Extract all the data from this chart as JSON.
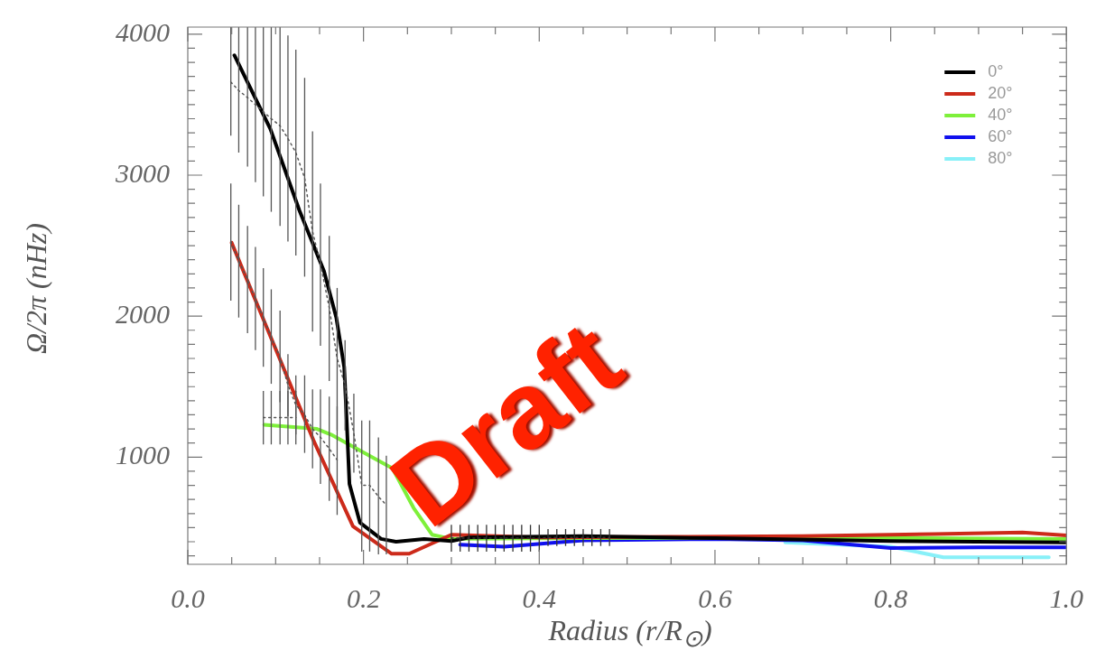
{
  "chart_data": {
    "type": "line",
    "xlabel": "Radius (r/R$_{⊙}$)",
    "ylabel": "Ω/2π (nHz)",
    "annotations": [
      "Draft"
    ],
    "legend": "top right",
    "marker": "none",
    "xlim": [
      0,
      1
    ],
    "ylim": [
      240,
      4050
    ],
    "xticks": [
      {
        "value": 0,
        "label": "0.0"
      },
      {
        "value": 0.05,
        "label": null
      },
      {
        "value": 0.1,
        "label": null
      },
      {
        "value": 0.15,
        "label": null
      },
      {
        "value": 0.2,
        "label": "0.2"
      },
      {
        "value": 0.25,
        "label": null
      },
      {
        "value": 0.3,
        "label": null
      },
      {
        "value": 0.35,
        "label": null
      },
      {
        "value": 0.4,
        "label": "0.4"
      },
      {
        "value": 0.45,
        "label": null
      },
      {
        "value": 0.5,
        "label": null
      },
      {
        "value": 0.55,
        "label": null
      },
      {
        "value": 0.6,
        "label": "0.6"
      },
      {
        "value": 0.65,
        "label": null
      },
      {
        "value": 0.7,
        "label": null
      },
      {
        "value": 0.75,
        "label": null
      },
      {
        "value": 0.8,
        "label": "0.8"
      },
      {
        "value": 0.85,
        "label": null
      },
      {
        "value": 0.9,
        "label": null
      },
      {
        "value": 0.95,
        "label": null
      },
      {
        "value": 1,
        "label": "1.0"
      }
    ],
    "yticks": [
      {
        "value": 300,
        "label": null
      },
      {
        "value": 400,
        "label": null
      },
      {
        "value": 500,
        "label": null
      },
      {
        "value": 600,
        "label": null
      },
      {
        "value": 700,
        "label": null
      },
      {
        "value": 800,
        "label": null
      },
      {
        "value": 900,
        "label": null
      },
      1000,
      {
        "value": 1100,
        "label": null
      },
      {
        "value": 1200,
        "label": null
      },
      {
        "value": 1300,
        "label": null
      },
      {
        "value": 1400,
        "label": null
      },
      {
        "value": 1500,
        "label": null
      },
      {
        "value": 1600,
        "label": null
      },
      {
        "value": 1700,
        "label": null
      },
      {
        "value": 1800,
        "label": null
      },
      {
        "value": 1900,
        "label": null
      },
      2000,
      {
        "value": 2100,
        "label": null
      },
      {
        "value": 2200,
        "label": null
      },
      {
        "value": 2300,
        "label": null
      },
      {
        "value": 2400,
        "label": null
      },
      {
        "value": 2500,
        "label": null
      },
      {
        "value": 2600,
        "label": null
      },
      {
        "value": 2700,
        "label": null
      },
      {
        "value": 2800,
        "label": null
      },
      {
        "value": 2900,
        "label": null
      },
      3000,
      {
        "value": 3100,
        "label": null
      },
      {
        "value": 3200,
        "label": null
      },
      {
        "value": 3300,
        "label": null
      },
      {
        "value": 3400,
        "label": null
      },
      {
        "value": 3500,
        "label": null
      },
      {
        "value": 3600,
        "label": null
      },
      {
        "value": 3700,
        "label": null
      },
      {
        "value": 3800,
        "label": null
      },
      {
        "value": 3900,
        "label": null
      },
      4000
    ],
    "series": [
      {
        "type": "line",
        "line_style": "dotted",
        "color": "#555555",
        "x": [
          0.049,
          0.058,
          0.068,
          0.077,
          0.086,
          0.095,
          0.105,
          0.114,
          0.123,
          0.133,
          0.142,
          0.151,
          0.161,
          0.17,
          0.179,
          0.189,
          0.198,
          0.207,
          0.217,
          0.226
        ],
        "values": [
          3660,
          3600,
          3550,
          3500,
          3450,
          3400,
          3350,
          3260,
          3160,
          2980,
          2600,
          2370,
          2060,
          1700,
          1510,
          1170,
          800,
          800,
          720,
          660
        ],
        "errors": [
          [
            3280,
            4050
          ],
          [
            3160,
            4050
          ],
          [
            3060,
            4050
          ],
          [
            2950,
            4050
          ],
          [
            2850,
            4050
          ],
          [
            2740,
            4050
          ],
          [
            2640,
            4050
          ],
          [
            2530,
            3990
          ],
          [
            2430,
            3890
          ],
          [
            2280,
            3690
          ],
          [
            1890,
            3310
          ],
          [
            1790,
            2940
          ],
          [
            1540,
            2570
          ],
          [
            1190,
            2200
          ],
          [
            1190,
            1830
          ],
          [
            890,
            1450
          ],
          [
            330,
            1260
          ],
          [
            330,
            1260
          ],
          [
            310,
            1140
          ],
          [
            310,
            1010
          ]
        ]
      },
      {
        "type": "line",
        "line_style": "dotted",
        "color": "#555555",
        "x": [
          0.049,
          0.058,
          0.068,
          0.077,
          0.086,
          0.095,
          0.105,
          0.114,
          0.123,
          0.133,
          0.142,
          0.151,
          0.161,
          0.17
        ],
        "values": [
          2530,
          2390,
          2260,
          2120,
          1990,
          1850,
          1710,
          1510,
          1370,
          1300,
          1200,
          1140,
          1060,
          980
        ],
        "errors": [
          [
            2110,
            2940
          ],
          [
            1990,
            2790
          ],
          [
            1880,
            2640
          ],
          [
            1760,
            2490
          ],
          [
            1640,
            2340
          ],
          [
            1520,
            2190
          ],
          [
            1390,
            2040
          ],
          [
            1290,
            1730
          ],
          [
            1160,
            1580
          ],
          [
            1030,
            1580
          ],
          [
            920,
            1480
          ],
          [
            810,
            1480
          ],
          [
            690,
            1430
          ],
          [
            590,
            1360
          ]
        ]
      },
      {
        "type": "line",
        "line_style": "dotted",
        "color": "#555555",
        "x": [
          0.086,
          0.095,
          0.105,
          0.114,
          0.123
        ],
        "values": [
          1280,
          1280,
          1280,
          1280,
          1280
        ],
        "errors": [
          [
            1090,
            1470
          ],
          [
            1090,
            1470
          ],
          [
            1090,
            1470
          ],
          [
            1090,
            1470
          ],
          [
            1090,
            1470
          ]
        ]
      },
      {
        "type": "line",
        "line_style": "dotted",
        "color": "#333333",
        "x": [
          0.3,
          0.31,
          0.32,
          0.33,
          0.34,
          0.35,
          0.36,
          0.37,
          0.38,
          0.39,
          0.4,
          0.41,
          0.42,
          0.43,
          0.44,
          0.45,
          0.46,
          0.47,
          0.48
        ],
        "values": [
          425,
          425,
          425,
          425,
          425,
          425,
          425,
          425,
          425,
          425,
          425,
          430,
          430,
          430,
          430,
          430,
          430,
          430,
          430
        ],
        "errors": [
          [
            330,
            520
          ],
          [
            330,
            520
          ],
          [
            330,
            520
          ],
          [
            330,
            520
          ],
          [
            330,
            520
          ],
          [
            330,
            520
          ],
          [
            330,
            520
          ],
          [
            330,
            520
          ],
          [
            330,
            520
          ],
          [
            330,
            520
          ],
          [
            330,
            520
          ],
          [
            370,
            490
          ],
          [
            370,
            490
          ],
          [
            370,
            490
          ],
          [
            370,
            490
          ],
          [
            370,
            490
          ],
          [
            370,
            490
          ],
          [
            370,
            490
          ],
          [
            370,
            490
          ]
        ]
      },
      {
        "name": "0°",
        "color": "#000000",
        "x": [
          0.053,
          0.094,
          0.127,
          0.155,
          0.169,
          0.178,
          0.181,
          0.184,
          0.196,
          0.22,
          0.237,
          0.269,
          0.3,
          0.32,
          0.45,
          0.6,
          0.8,
          1.0
        ],
        "values": [
          3850,
          3327,
          2750,
          2320,
          1990,
          1640,
          1240,
          810,
          535,
          420,
          400,
          420,
          405,
          430,
          440,
          425,
          405,
          395
        ]
      },
      {
        "name": "20°",
        "color": "#cc2a1a",
        "x": [
          0.05,
          0.143,
          0.188,
          0.232,
          0.252,
          0.3,
          0.4,
          0.55,
          0.7,
          0.85,
          0.95,
          1.0
        ],
        "values": [
          2520,
          1120,
          510,
          315,
          315,
          450,
          430,
          435,
          440,
          455,
          465,
          445
        ]
      },
      {
        "name": "40°",
        "color": "#7ef03a",
        "x": [
          0.087,
          0.147,
          0.163,
          0.233,
          0.257,
          0.278,
          0.3,
          0.45,
          0.7,
          1.0
        ],
        "values": [
          1230,
          1200,
          1160,
          920,
          640,
          450,
          420,
          425,
          430,
          420
        ]
      },
      {
        "name": "60°",
        "color": "#1010ee",
        "x": [
          0.31,
          0.36,
          0.45,
          0.6,
          0.7,
          0.8,
          0.9,
          1.0
        ],
        "values": [
          380,
          365,
          410,
          420,
          410,
          355,
          360,
          360
        ]
      },
      {
        "name": "80°",
        "color": "#88f0f8",
        "x": [
          0.68,
          0.8,
          0.86,
          0.98
        ],
        "values": [
          395,
          365,
          290,
          290
        ]
      }
    ]
  }
}
